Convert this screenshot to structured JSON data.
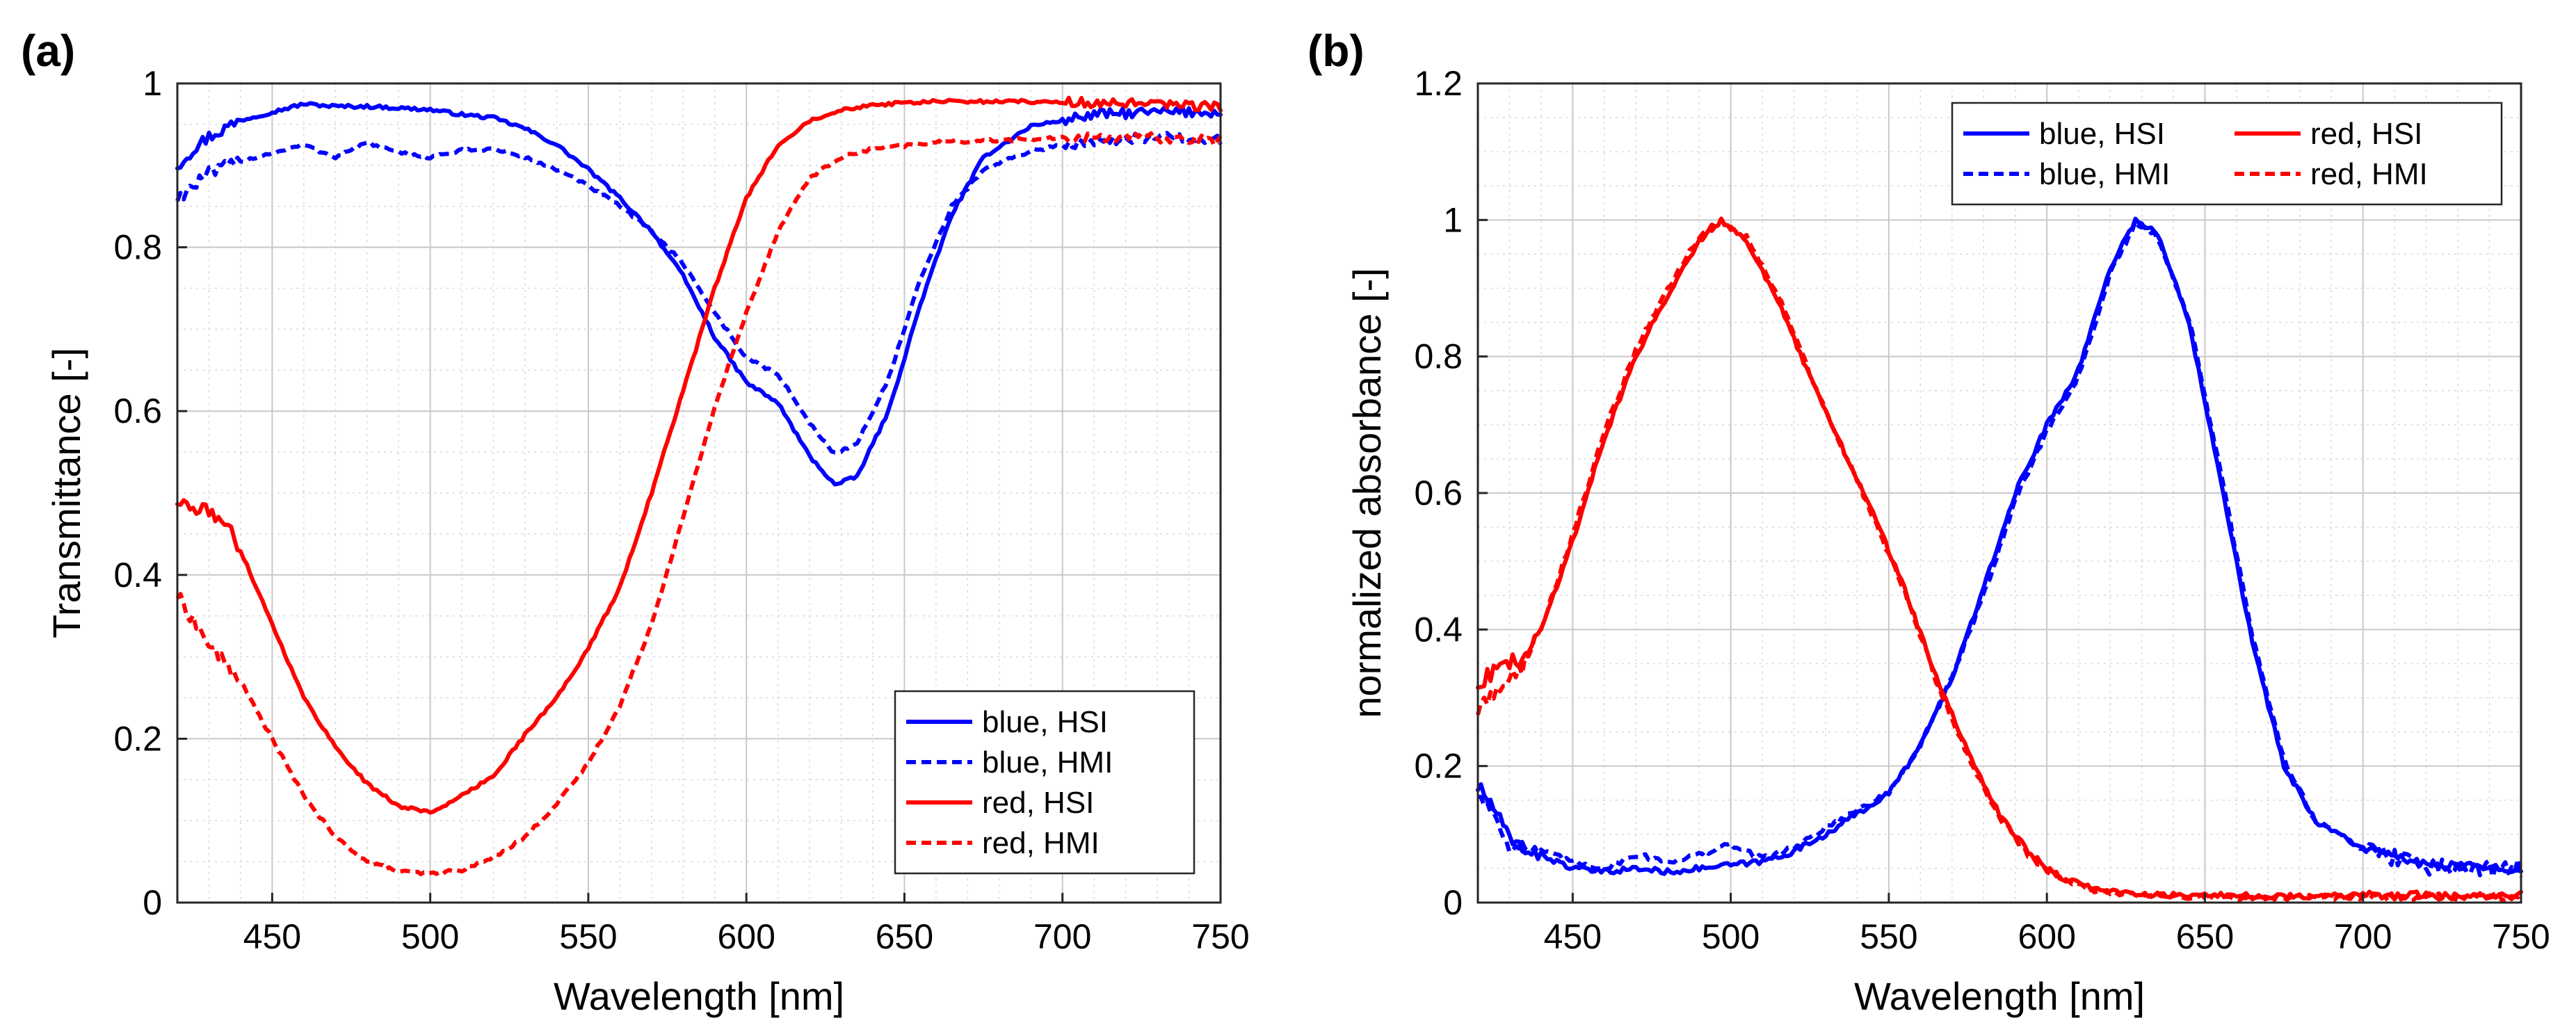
{
  "chart_data": [
    {
      "panel_label": "(a)",
      "type": "line",
      "xlabel": "Wavelength [nm]",
      "ylabel": "Transmittance [-]",
      "xlim": [
        420,
        750
      ],
      "ylim": [
        0,
        1
      ],
      "xticks": [
        450,
        500,
        550,
        600,
        650,
        700,
        750
      ],
      "yticks": [
        0,
        0.2,
        0.4,
        0.6,
        0.8,
        1
      ],
      "ytick_labels": [
        "0",
        "0.2",
        "0.4",
        "0.6",
        "0.8",
        "1"
      ],
      "grid": true,
      "minor_grid": true,
      "legend_position": "bottom-right",
      "legend_columns": 1,
      "series": [
        {
          "name": "blue, HSI",
          "color": "#0000ff",
          "style": "solid",
          "points": [
            [
              420,
              0.9
            ],
            [
              425,
              0.92
            ],
            [
              430,
              0.935
            ],
            [
              440,
              0.955
            ],
            [
              450,
              0.965
            ],
            [
              460,
              0.975
            ],
            [
              470,
              0.972
            ],
            [
              480,
              0.972
            ],
            [
              490,
              0.97
            ],
            [
              500,
              0.968
            ],
            [
              510,
              0.962
            ],
            [
              520,
              0.958
            ],
            [
              530,
              0.945
            ],
            [
              540,
              0.925
            ],
            [
              550,
              0.895
            ],
            [
              560,
              0.86
            ],
            [
              570,
              0.82
            ],
            [
              580,
              0.765
            ],
            [
              590,
              0.69
            ],
            [
              600,
              0.635
            ],
            [
              610,
              0.61
            ],
            [
              620,
              0.545
            ],
            [
              628,
              0.51
            ],
            [
              635,
              0.52
            ],
            [
              645,
              0.6
            ],
            [
              655,
              0.73
            ],
            [
              665,
              0.84
            ],
            [
              675,
              0.91
            ],
            [
              690,
              0.948
            ],
            [
              710,
              0.962
            ],
            [
              730,
              0.965
            ],
            [
              750,
              0.965
            ]
          ]
        },
        {
          "name": "blue, HMI",
          "color": "#0000ff",
          "style": "dashed",
          "points": [
            [
              420,
              0.86
            ],
            [
              430,
              0.89
            ],
            [
              440,
              0.905
            ],
            [
              450,
              0.915
            ],
            [
              460,
              0.925
            ],
            [
              470,
              0.91
            ],
            [
              480,
              0.928
            ],
            [
              490,
              0.915
            ],
            [
              500,
              0.91
            ],
            [
              510,
              0.918
            ],
            [
              520,
              0.92
            ],
            [
              530,
              0.91
            ],
            [
              540,
              0.895
            ],
            [
              550,
              0.875
            ],
            [
              560,
              0.85
            ],
            [
              570,
              0.82
            ],
            [
              580,
              0.78
            ],
            [
              590,
              0.72
            ],
            [
              600,
              0.665
            ],
            [
              610,
              0.645
            ],
            [
              620,
              0.585
            ],
            [
              628,
              0.548
            ],
            [
              635,
              0.56
            ],
            [
              645,
              0.64
            ],
            [
              655,
              0.76
            ],
            [
              665,
              0.85
            ],
            [
              675,
              0.895
            ],
            [
              690,
              0.918
            ],
            [
              710,
              0.93
            ],
            [
              730,
              0.935
            ],
            [
              750,
              0.93
            ]
          ]
        },
        {
          "name": "red, HSI",
          "color": "#ff0000",
          "style": "solid",
          "points": [
            [
              420,
              0.49
            ],
            [
              425,
              0.48
            ],
            [
              430,
              0.478
            ],
            [
              435,
              0.465
            ],
            [
              440,
              0.43
            ],
            [
              450,
              0.34
            ],
            [
              460,
              0.25
            ],
            [
              470,
              0.19
            ],
            [
              480,
              0.145
            ],
            [
              490,
              0.118
            ],
            [
              500,
              0.11
            ],
            [
              510,
              0.13
            ],
            [
              520,
              0.155
            ],
            [
              530,
              0.205
            ],
            [
              540,
              0.25
            ],
            [
              550,
              0.31
            ],
            [
              560,
              0.385
            ],
            [
              570,
              0.5
            ],
            [
              580,
              0.625
            ],
            [
              590,
              0.75
            ],
            [
              600,
              0.86
            ],
            [
              610,
              0.925
            ],
            [
              620,
              0.955
            ],
            [
              630,
              0.968
            ],
            [
              640,
              0.974
            ],
            [
              660,
              0.978
            ],
            [
              690,
              0.978
            ],
            [
              720,
              0.975
            ],
            [
              750,
              0.972
            ]
          ]
        },
        {
          "name": "red, HMI",
          "color": "#ff0000",
          "style": "dashed",
          "points": [
            [
              420,
              0.375
            ],
            [
              425,
              0.345
            ],
            [
              430,
              0.315
            ],
            [
              440,
              0.27
            ],
            [
              450,
              0.2
            ],
            [
              460,
              0.13
            ],
            [
              470,
              0.08
            ],
            [
              480,
              0.05
            ],
            [
              490,
              0.038
            ],
            [
              500,
              0.035
            ],
            [
              510,
              0.04
            ],
            [
              520,
              0.055
            ],
            [
              530,
              0.08
            ],
            [
              540,
              0.12
            ],
            [
              550,
              0.17
            ],
            [
              560,
              0.24
            ],
            [
              570,
              0.34
            ],
            [
              580,
              0.47
            ],
            [
              590,
              0.605
            ],
            [
              600,
              0.72
            ],
            [
              610,
              0.82
            ],
            [
              620,
              0.885
            ],
            [
              630,
              0.91
            ],
            [
              640,
              0.92
            ],
            [
              660,
              0.928
            ],
            [
              690,
              0.932
            ],
            [
              720,
              0.935
            ],
            [
              750,
              0.93
            ]
          ]
        }
      ]
    },
    {
      "panel_label": "(b)",
      "type": "line",
      "xlabel": "Wavelength [nm]",
      "ylabel": "normalized absorbance [-]",
      "xlim": [
        420,
        750
      ],
      "ylim": [
        0,
        1.2
      ],
      "xticks": [
        450,
        500,
        550,
        600,
        650,
        700,
        750
      ],
      "yticks": [
        0,
        0.2,
        0.4,
        0.6,
        0.8,
        1,
        1.2
      ],
      "ytick_labels": [
        "0",
        "0.2",
        "0.4",
        "0.6",
        "0.8",
        "1",
        "1.2"
      ],
      "grid": true,
      "minor_grid": true,
      "legend_position": "top-right",
      "legend_columns": 2,
      "series": [
        {
          "name": "blue, HSI",
          "color": "#0000ff",
          "style": "solid",
          "points": [
            [
              420,
              0.17
            ],
            [
              425,
              0.14
            ],
            [
              430,
              0.09
            ],
            [
              440,
              0.07
            ],
            [
              450,
              0.05
            ],
            [
              460,
              0.045
            ],
            [
              470,
              0.05
            ],
            [
              480,
              0.045
            ],
            [
              490,
              0.05
            ],
            [
              500,
              0.055
            ],
            [
              510,
              0.06
            ],
            [
              520,
              0.075
            ],
            [
              530,
              0.1
            ],
            [
              540,
              0.13
            ],
            [
              550,
              0.16
            ],
            [
              560,
              0.23
            ],
            [
              570,
              0.33
            ],
            [
              580,
              0.46
            ],
            [
              590,
              0.6
            ],
            [
              600,
              0.7
            ],
            [
              610,
              0.78
            ],
            [
              620,
              0.93
            ],
            [
              628,
              1.0
            ],
            [
              635,
              0.98
            ],
            [
              645,
              0.85
            ],
            [
              655,
              0.62
            ],
            [
              665,
              0.38
            ],
            [
              675,
              0.2
            ],
            [
              685,
              0.12
            ],
            [
              700,
              0.08
            ],
            [
              720,
              0.055
            ],
            [
              750,
              0.05
            ]
          ]
        },
        {
          "name": "blue, HMI",
          "color": "#0000ff",
          "style": "dashed",
          "points": [
            [
              420,
              0.16
            ],
            [
              425,
              0.13
            ],
            [
              430,
              0.085
            ],
            [
              440,
              0.075
            ],
            [
              450,
              0.06
            ],
            [
              460,
              0.05
            ],
            [
              470,
              0.07
            ],
            [
              480,
              0.06
            ],
            [
              490,
              0.07
            ],
            [
              500,
              0.085
            ],
            [
              510,
              0.065
            ],
            [
              520,
              0.08
            ],
            [
              530,
              0.11
            ],
            [
              540,
              0.135
            ],
            [
              550,
              0.16
            ],
            [
              560,
              0.23
            ],
            [
              570,
              0.33
            ],
            [
              580,
              0.45
            ],
            [
              590,
              0.59
            ],
            [
              600,
              0.69
            ],
            [
              610,
              0.77
            ],
            [
              620,
              0.92
            ],
            [
              628,
              0.995
            ],
            [
              635,
              0.975
            ],
            [
              645,
              0.855
            ],
            [
              655,
              0.63
            ],
            [
              665,
              0.39
            ],
            [
              675,
              0.21
            ],
            [
              685,
              0.12
            ],
            [
              700,
              0.08
            ],
            [
              720,
              0.055
            ],
            [
              750,
              0.05
            ]
          ]
        },
        {
          "name": "red, HSI",
          "color": "#ff0000",
          "style": "solid",
          "points": [
            [
              420,
              0.32
            ],
            [
              425,
              0.34
            ],
            [
              430,
              0.35
            ],
            [
              435,
              0.36
            ],
            [
              440,
              0.4
            ],
            [
              450,
              0.53
            ],
            [
              460,
              0.68
            ],
            [
              470,
              0.8
            ],
            [
              480,
              0.89
            ],
            [
              490,
              0.97
            ],
            [
              497,
              1.0
            ],
            [
              505,
              0.97
            ],
            [
              515,
              0.88
            ],
            [
              525,
              0.77
            ],
            [
              535,
              0.67
            ],
            [
              545,
              0.57
            ],
            [
              555,
              0.46
            ],
            [
              565,
              0.33
            ],
            [
              575,
              0.22
            ],
            [
              585,
              0.13
            ],
            [
              595,
              0.07
            ],
            [
              605,
              0.035
            ],
            [
              615,
              0.02
            ],
            [
              630,
              0.012
            ],
            [
              660,
              0.01
            ],
            [
              700,
              0.01
            ],
            [
              750,
              0.01
            ]
          ]
        },
        {
          "name": "red, HMI",
          "color": "#ff0000",
          "style": "dashed",
          "points": [
            [
              420,
              0.28
            ],
            [
              425,
              0.31
            ],
            [
              430,
              0.33
            ],
            [
              435,
              0.35
            ],
            [
              440,
              0.4
            ],
            [
              450,
              0.54
            ],
            [
              460,
              0.69
            ],
            [
              470,
              0.81
            ],
            [
              480,
              0.9
            ],
            [
              490,
              0.975
            ],
            [
              497,
              1.0
            ],
            [
              505,
              0.975
            ],
            [
              515,
              0.89
            ],
            [
              525,
              0.775
            ],
            [
              535,
              0.67
            ],
            [
              545,
              0.565
            ],
            [
              555,
              0.455
            ],
            [
              565,
              0.325
            ],
            [
              575,
              0.215
            ],
            [
              585,
              0.125
            ],
            [
              595,
              0.065
            ],
            [
              605,
              0.032
            ],
            [
              615,
              0.018
            ],
            [
              630,
              0.01
            ],
            [
              660,
              0.008
            ],
            [
              700,
              0.008
            ],
            [
              750,
              0.008
            ]
          ]
        }
      ]
    }
  ]
}
